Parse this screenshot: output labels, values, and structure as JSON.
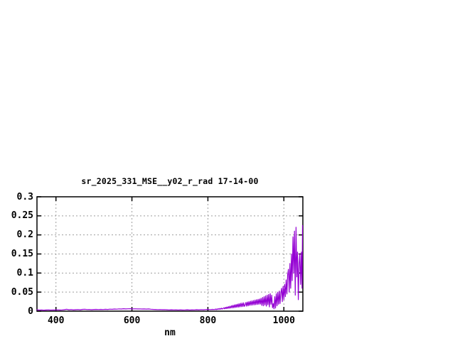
{
  "page": {
    "background": "#ffffff",
    "axis_color": "#000000",
    "grid_color": "#9e9e9e",
    "text_color": "#000000"
  },
  "chart_data": {
    "type": "line",
    "title": "sr_2025_331_MSE__y02_r_rad 17-14-00",
    "xlabel": "nm",
    "ylabel": "",
    "xlim": [
      350,
      1050
    ],
    "ylim": [
      0,
      0.3
    ],
    "grid": true,
    "legend": "none",
    "line_color": "#9400d3",
    "x_ticks": [
      {
        "v": 400,
        "label": "400"
      },
      {
        "v": 600,
        "label": "600"
      },
      {
        "v": 800,
        "label": "800"
      },
      {
        "v": 1000,
        "label": "1000"
      }
    ],
    "y_ticks": [
      {
        "v": 0,
        "label": "0"
      },
      {
        "v": 0.05,
        "label": "0.05"
      },
      {
        "v": 0.1,
        "label": "0.1"
      },
      {
        "v": 0.15,
        "label": "0.15"
      },
      {
        "v": 0.2,
        "label": "0.2"
      },
      {
        "v": 0.25,
        "label": "0.25"
      },
      {
        "v": 0.3,
        "label": "0.3"
      }
    ],
    "series": [
      {
        "name": "sr_2025_331_MSE__y02_r_rad",
        "points": [
          [
            350,
            0.0035
          ],
          [
            356,
            0.0028
          ],
          [
            362,
            0.0031
          ],
          [
            368,
            0.0027
          ],
          [
            374,
            0.003
          ],
          [
            380,
            0.0033
          ],
          [
            386,
            0.0028
          ],
          [
            392,
            0.0032
          ],
          [
            398,
            0.0029
          ],
          [
            404,
            0.0033
          ],
          [
            410,
            0.003
          ],
          [
            416,
            0.0034
          ],
          [
            422,
            0.004
          ],
          [
            428,
            0.005
          ],
          [
            434,
            0.0038
          ],
          [
            440,
            0.0042
          ],
          [
            446,
            0.0036
          ],
          [
            452,
            0.004
          ],
          [
            458,
            0.0043
          ],
          [
            464,
            0.0038
          ],
          [
            470,
            0.0046
          ],
          [
            476,
            0.005
          ],
          [
            482,
            0.0042
          ],
          [
            488,
            0.0045
          ],
          [
            494,
            0.004
          ],
          [
            500,
            0.0044
          ],
          [
            506,
            0.0047
          ],
          [
            512,
            0.0043
          ],
          [
            518,
            0.0046
          ],
          [
            524,
            0.0042
          ],
          [
            530,
            0.0049
          ],
          [
            536,
            0.0045
          ],
          [
            542,
            0.0053
          ],
          [
            548,
            0.0049
          ],
          [
            554,
            0.0056
          ],
          [
            560,
            0.0052
          ],
          [
            566,
            0.006
          ],
          [
            572,
            0.0056
          ],
          [
            578,
            0.0063
          ],
          [
            584,
            0.0057
          ],
          [
            590,
            0.0061
          ],
          [
            596,
            0.0064
          ],
          [
            602,
            0.0058
          ],
          [
            608,
            0.0062
          ],
          [
            614,
            0.0057
          ],
          [
            620,
            0.006
          ],
          [
            626,
            0.0055
          ],
          [
            632,
            0.0058
          ],
          [
            638,
            0.0054
          ],
          [
            644,
            0.0057
          ],
          [
            650,
            0.0051
          ],
          [
            656,
            0.0047
          ],
          [
            662,
            0.0044
          ],
          [
            668,
            0.0041
          ],
          [
            674,
            0.0043
          ],
          [
            680,
            0.0039
          ],
          [
            686,
            0.0041
          ],
          [
            692,
            0.0037
          ],
          [
            698,
            0.0034
          ],
          [
            704,
            0.0037
          ],
          [
            710,
            0.0033
          ],
          [
            716,
            0.0036
          ],
          [
            722,
            0.0032
          ],
          [
            728,
            0.0035
          ],
          [
            734,
            0.0031
          ],
          [
            740,
            0.0034
          ],
          [
            746,
            0.0037
          ],
          [
            752,
            0.0032
          ],
          [
            758,
            0.0036
          ],
          [
            764,
            0.0033
          ],
          [
            770,
            0.0039
          ],
          [
            776,
            0.0035
          ],
          [
            782,
            0.0041
          ],
          [
            788,
            0.0037
          ],
          [
            794,
            0.0042
          ],
          [
            800,
            0.0046
          ],
          [
            806,
            0.0041
          ],
          [
            812,
            0.0047
          ],
          [
            818,
            0.0043
          ],
          [
            820,
            0.0055
          ],
          [
            822,
            0.004
          ],
          [
            824,
            0.006
          ],
          [
            826,
            0.0044
          ],
          [
            828,
            0.0065
          ],
          [
            830,
            0.0048
          ],
          [
            832,
            0.0072
          ],
          [
            834,
            0.005
          ],
          [
            836,
            0.008
          ],
          [
            838,
            0.0055
          ],
          [
            840,
            0.007
          ],
          [
            842,
            0.009
          ],
          [
            844,
            0.006
          ],
          [
            846,
            0.01
          ],
          [
            848,
            0.0065
          ],
          [
            850,
            0.011
          ],
          [
            852,
            0.007
          ],
          [
            854,
            0.012
          ],
          [
            856,
            0.0075
          ],
          [
            858,
            0.013
          ],
          [
            860,
            0.008
          ],
          [
            862,
            0.0145
          ],
          [
            864,
            0.0085
          ],
          [
            866,
            0.0155
          ],
          [
            868,
            0.009
          ],
          [
            870,
            0.0165
          ],
          [
            872,
            0.0095
          ],
          [
            874,
            0.0175
          ],
          [
            876,
            0.01
          ],
          [
            878,
            0.0185
          ],
          [
            880,
            0.0105
          ],
          [
            882,
            0.0195
          ],
          [
            884,
            0.011
          ],
          [
            886,
            0.0205
          ],
          [
            888,
            0.0115
          ],
          [
            890,
            0.0215
          ],
          [
            892,
            0.012
          ],
          [
            894,
            0.022
          ],
          [
            896,
            0.0125
          ],
          [
            898,
            0.016
          ],
          [
            900,
            0.023
          ],
          [
            902,
            0.013
          ],
          [
            904,
            0.024
          ],
          [
            906,
            0.014
          ],
          [
            908,
            0.025
          ],
          [
            910,
            0.015
          ],
          [
            912,
            0.026
          ],
          [
            914,
            0.0155
          ],
          [
            916,
            0.027
          ],
          [
            918,
            0.016
          ],
          [
            920,
            0.028
          ],
          [
            922,
            0.0165
          ],
          [
            924,
            0.029
          ],
          [
            926,
            0.017
          ],
          [
            928,
            0.03
          ],
          [
            930,
            0.0175
          ],
          [
            932,
            0.031
          ],
          [
            934,
            0.018
          ],
          [
            936,
            0.032
          ],
          [
            938,
            0.0185
          ],
          [
            940,
            0.034
          ],
          [
            942,
            0.015
          ],
          [
            944,
            0.036
          ],
          [
            946,
            0.014
          ],
          [
            948,
            0.038
          ],
          [
            950,
            0.016
          ],
          [
            952,
            0.04
          ],
          [
            954,
            0.013
          ],
          [
            956,
            0.042
          ],
          [
            958,
            0.017
          ],
          [
            960,
            0.044
          ],
          [
            962,
            0.011
          ],
          [
            964,
            0.046
          ],
          [
            966,
            0.018
          ],
          [
            968,
            0.042
          ],
          [
            970,
            0.009
          ],
          [
            972,
            0.02
          ],
          [
            974,
            0.006
          ],
          [
            976,
            0.038
          ],
          [
            978,
            0.008
          ],
          [
            980,
            0.046
          ],
          [
            982,
            0.014
          ],
          [
            984,
            0.05
          ],
          [
            986,
            0.018
          ],
          [
            988,
            0.053
          ],
          [
            990,
            0.02
          ],
          [
            992,
            0.048
          ],
          [
            994,
            0.06
          ],
          [
            996,
            0.025
          ],
          [
            998,
            0.065
          ],
          [
            1000,
            0.03
          ],
          [
            1002,
            0.07
          ],
          [
            1004,
            0.038
          ],
          [
            1006,
            0.082
          ],
          [
            1008,
            0.045
          ],
          [
            1010,
            0.095
          ],
          [
            1012,
            0.11
          ],
          [
            1014,
            0.05
          ],
          [
            1016,
            0.125
          ],
          [
            1018,
            0.06
          ],
          [
            1020,
            0.15
          ],
          [
            1022,
            0.08
          ],
          [
            1024,
            0.195
          ],
          [
            1026,
            0.1
          ],
          [
            1028,
            0.21
          ],
          [
            1030,
            0.042
          ],
          [
            1032,
            0.22
          ],
          [
            1034,
            0.09
          ],
          [
            1036,
            0.155
          ],
          [
            1038,
            0.03
          ],
          [
            1040,
            0.125
          ],
          [
            1042,
            0.15
          ],
          [
            1044,
            0.07
          ],
          [
            1046,
            0.155
          ],
          [
            1048,
            0.06
          ],
          [
            1049,
            0.225
          ]
        ]
      }
    ]
  }
}
